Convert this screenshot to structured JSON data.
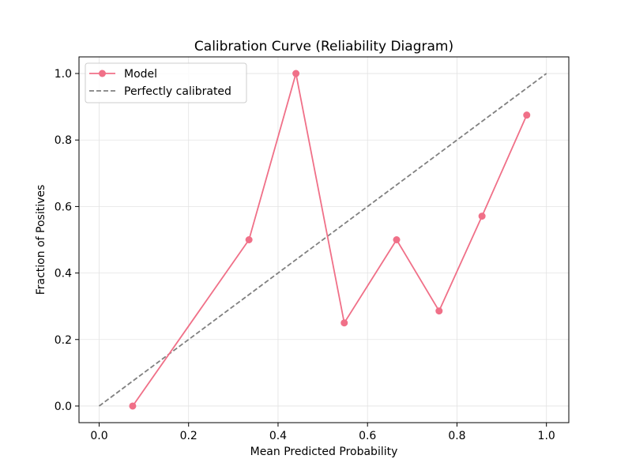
{
  "chart_data": {
    "type": "line",
    "title": "Calibration Curve (Reliability Diagram)",
    "xlabel": "Mean Predicted Probability",
    "ylabel": "Fraction of Positives",
    "xlim": [
      -0.045,
      1.05
    ],
    "ylim": [
      -0.05,
      1.05
    ],
    "xticks": [
      0.0,
      0.2,
      0.4,
      0.6,
      0.8,
      1.0
    ],
    "yticks": [
      0.0,
      0.2,
      0.4,
      0.6,
      0.8,
      1.0
    ],
    "xtick_labels": [
      "0.0",
      "0.2",
      "0.4",
      "0.6",
      "0.8",
      "1.0"
    ],
    "ytick_labels": [
      "0.0",
      "0.2",
      "0.4",
      "0.6",
      "0.8",
      "1.0"
    ],
    "grid": true,
    "legend_position": "top-left",
    "series": [
      {
        "name": "Model",
        "style": "solid-with-markers",
        "color": "#f07088",
        "x": [
          0.075,
          0.335,
          0.44,
          0.548,
          0.665,
          0.76,
          0.856,
          0.956
        ],
        "y": [
          0.0,
          0.5,
          1.0,
          0.25,
          0.5,
          0.286,
          0.571,
          0.875
        ]
      },
      {
        "name": "Perfectly calibrated",
        "style": "dashed",
        "color": "#808080",
        "x": [
          0.0,
          1.0
        ],
        "y": [
          0.0,
          1.0
        ]
      }
    ]
  }
}
